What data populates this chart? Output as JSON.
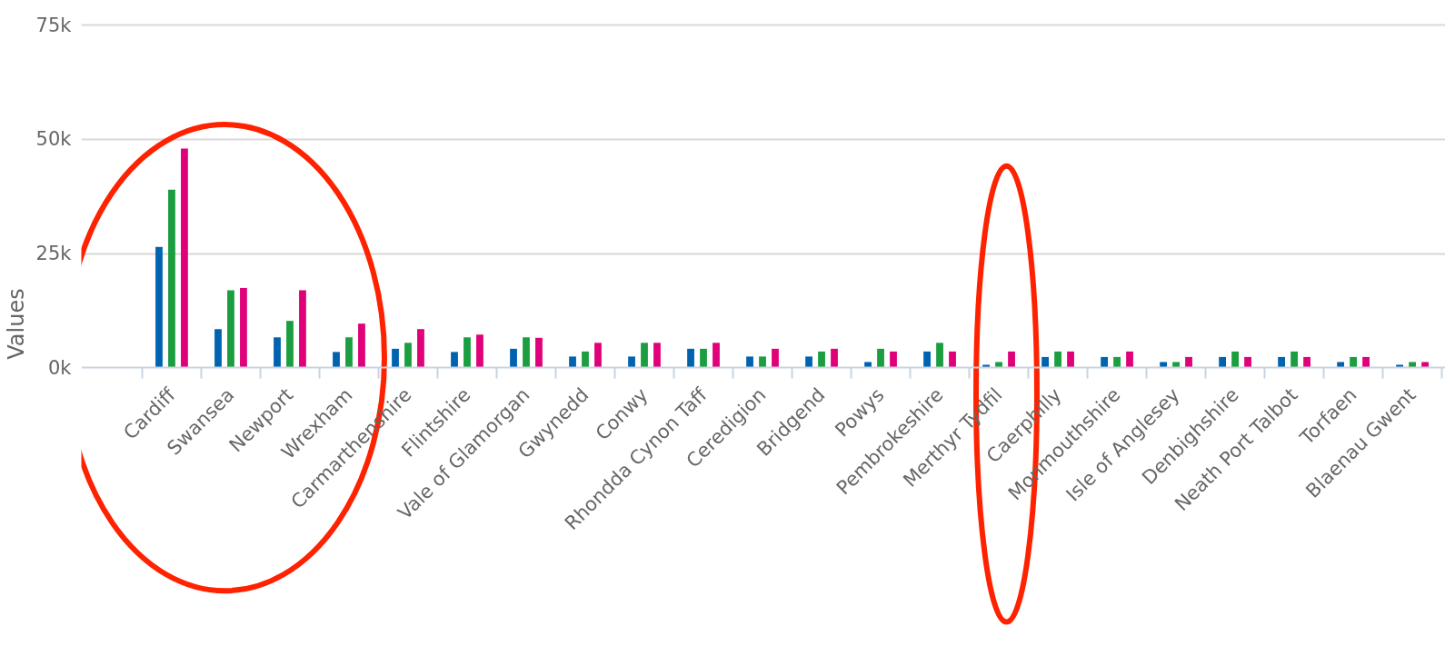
{
  "chart_data": {
    "type": "bar",
    "ylabel": "Values",
    "categories": [
      "Cardiff",
      "Swansea",
      "Newport",
      "Wrexham",
      "Carmarthenshire",
      "Flintshire",
      "Vale of Glamorgan",
      "Gwynedd",
      "Conwy",
      "Rhondda Cynon Taff",
      "Ceredigion",
      "Bridgend",
      "Powys",
      "Pembrokeshire",
      "Merthyr Tydfil",
      "Caerphilly",
      "Monmouthshire",
      "Isle of Anglesey",
      "Denbighshire",
      "Neath Port Talbot",
      "Torfaen",
      "Blaenau Gwent"
    ],
    "series": [
      {
        "color": "#0063b0",
        "values": [
          26500,
          8500,
          6700,
          3500,
          4200,
          3500,
          4200,
          2500,
          2500,
          4200,
          2500,
          2500,
          1300,
          3600,
          700,
          2400,
          2400,
          1300,
          2400,
          2400,
          1300,
          700
        ]
      },
      {
        "color": "#1a9e3f",
        "values": [
          39000,
          17000,
          10300,
          6700,
          5500,
          6700,
          6700,
          3600,
          5500,
          4200,
          2500,
          3600,
          4200,
          5500,
          1300,
          3600,
          2400,
          1300,
          3600,
          3600,
          2400,
          1300
        ]
      },
      {
        "color": "#e0007a",
        "values": [
          48000,
          17500,
          17000,
          9700,
          8500,
          7300,
          6600,
          5500,
          5500,
          5500,
          4200,
          4200,
          3600,
          3600,
          3600,
          3600,
          3600,
          2400,
          2400,
          2400,
          2400,
          1300
        ]
      }
    ],
    "ylim": [
      0,
      75000
    ],
    "yticks": [
      {
        "value": 0,
        "label": "0k"
      },
      {
        "value": 25000,
        "label": "25k"
      },
      {
        "value": 50000,
        "label": "50k"
      },
      {
        "value": 75000,
        "label": "75k"
      }
    ],
    "grid": "y"
  }
}
